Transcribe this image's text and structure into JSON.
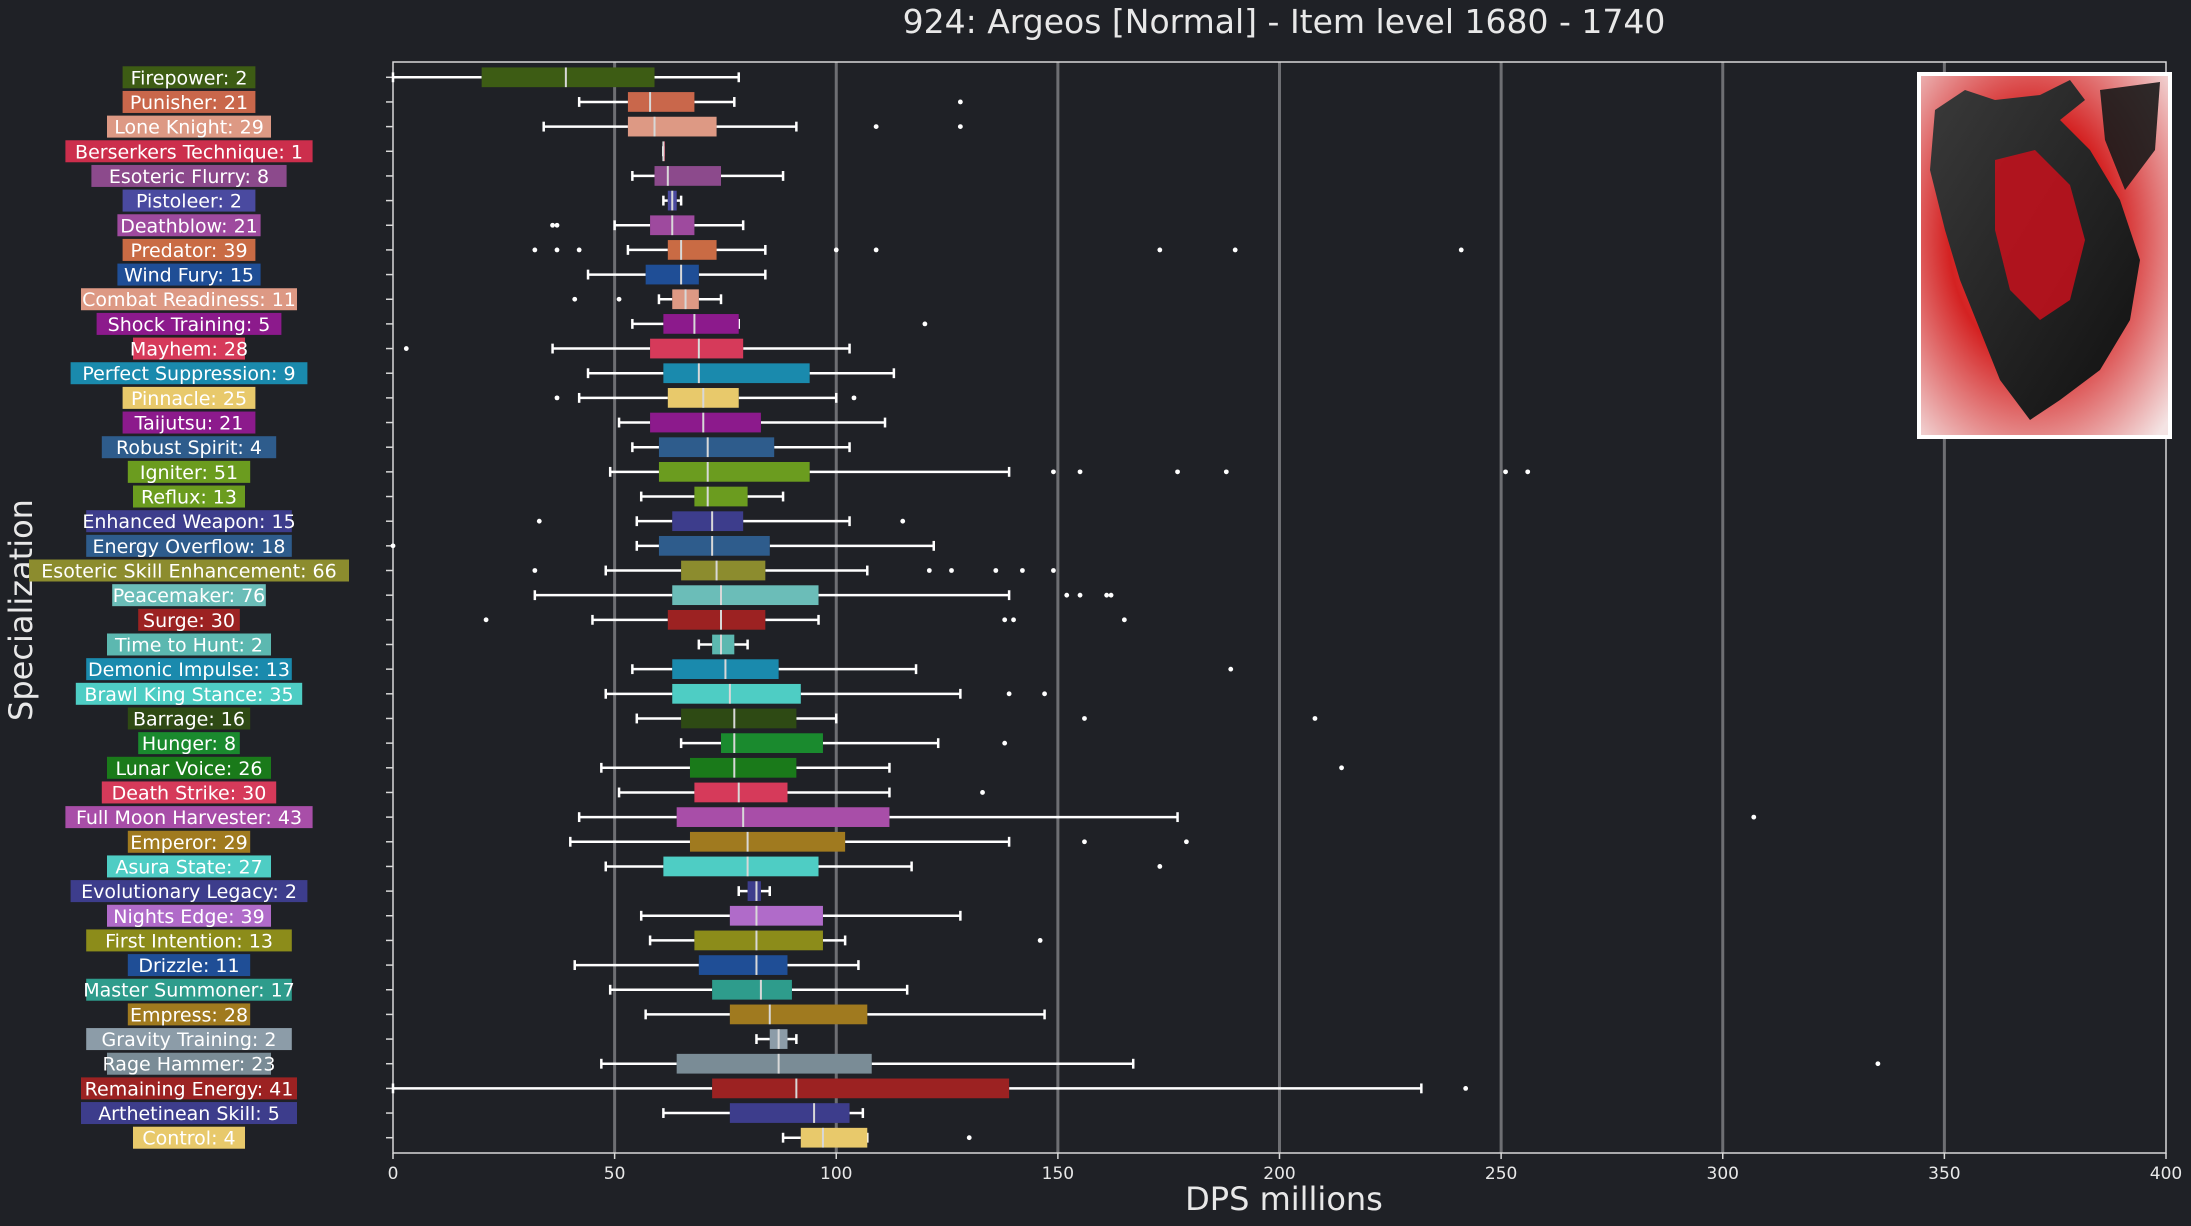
{
  "chart_data": {
    "type": "box",
    "title": "924: Argeos [Normal] - Item level 1680 - 1740",
    "xlabel": "DPS millions",
    "ylabel": "Specialization",
    "xlim": [
      0,
      400
    ],
    "xticks": [
      0,
      50,
      100,
      150,
      200,
      250,
      300,
      350,
      400
    ],
    "grid": "vertical",
    "thumbnail": "argeos-dragon-image",
    "series": [
      {
        "label": "Firepower: 2",
        "color": "#3d5c14",
        "whislo": 0,
        "q1": 20,
        "med": 39,
        "q3": 59,
        "whishi": 78,
        "fliers": []
      },
      {
        "label": "Punisher: 21",
        "color": "#c9674b",
        "whislo": 42,
        "q1": 53,
        "med": 58,
        "q3": 68,
        "whishi": 77,
        "fliers": [
          128
        ]
      },
      {
        "label": "Lone Knight: 29",
        "color": "#dd9984",
        "whislo": 34,
        "q1": 53,
        "med": 59,
        "q3": 73,
        "whishi": 91,
        "fliers": [
          109,
          128
        ]
      },
      {
        "label": "Berserkers Technique: 1",
        "color": "#cc2e4c",
        "whislo": 61,
        "q1": 61,
        "med": 61,
        "q3": 61,
        "whishi": 61,
        "fliers": []
      },
      {
        "label": "Esoteric Flurry: 8",
        "color": "#8c4a8c",
        "whislo": 54,
        "q1": 59,
        "med": 62,
        "q3": 74,
        "whishi": 88,
        "fliers": []
      },
      {
        "label": "Pistoleer: 2",
        "color": "#4a4aa0",
        "whislo": 61,
        "q1": 62,
        "med": 63,
        "q3": 64,
        "whishi": 65,
        "fliers": []
      },
      {
        "label": "Deathblow: 21",
        "color": "#9e4a9e",
        "whislo": 50,
        "q1": 58,
        "med": 63,
        "q3": 68,
        "whishi": 79,
        "fliers": [
          36,
          37
        ]
      },
      {
        "label": "Predator: 39",
        "color": "#c96b44",
        "whislo": 53,
        "q1": 62,
        "med": 65,
        "q3": 73,
        "whishi": 84,
        "fliers": [
          32,
          37,
          42,
          100,
          109,
          173,
          190,
          241
        ]
      },
      {
        "label": "Wind Fury: 15",
        "color": "#1f4e96",
        "whislo": 44,
        "q1": 57,
        "med": 65,
        "q3": 69,
        "whishi": 84,
        "fliers": []
      },
      {
        "label": "Combat Readiness: 11",
        "color": "#dd9984",
        "whislo": 60,
        "q1": 63,
        "med": 66,
        "q3": 69,
        "whishi": 74,
        "fliers": [
          41,
          51
        ]
      },
      {
        "label": "Shock Training: 5",
        "color": "#8c1a8c",
        "whislo": 54,
        "q1": 61,
        "med": 68,
        "q3": 78,
        "whishi": 78,
        "fliers": [
          120
        ]
      },
      {
        "label": "Mayhem: 28",
        "color": "#d63a5a",
        "whislo": 36,
        "q1": 58,
        "med": 69,
        "q3": 79,
        "whishi": 103,
        "fliers": [
          3
        ]
      },
      {
        "label": "Perfect Suppression: 9",
        "color": "#1a8aad",
        "whislo": 44,
        "q1": 61,
        "med": 69,
        "q3": 94,
        "whishi": 113,
        "fliers": []
      },
      {
        "label": "Pinnacle: 25",
        "color": "#e8c96b",
        "whislo": 42,
        "q1": 62,
        "med": 70,
        "q3": 78,
        "whishi": 100,
        "fliers": [
          37,
          104
        ]
      },
      {
        "label": "Taijutsu: 21",
        "color": "#8c1a8c",
        "whislo": 51,
        "q1": 58,
        "med": 70,
        "q3": 83,
        "whishi": 111,
        "fliers": []
      },
      {
        "label": "Robust Spirit: 4",
        "color": "#2e5c8c",
        "whislo": 54,
        "q1": 60,
        "med": 71,
        "q3": 86,
        "whishi": 103,
        "fliers": []
      },
      {
        "label": "Igniter: 51",
        "color": "#6b9c1f",
        "whislo": 49,
        "q1": 60,
        "med": 71,
        "q3": 94,
        "whishi": 139,
        "fliers": [
          149,
          155,
          177,
          188,
          251,
          256
        ]
      },
      {
        "label": "Reflux: 13",
        "color": "#6b9c1f",
        "whislo": 56,
        "q1": 68,
        "med": 71,
        "q3": 80,
        "whishi": 88,
        "fliers": []
      },
      {
        "label": "Enhanced Weapon: 15",
        "color": "#3d3d8c",
        "whislo": 55,
        "q1": 63,
        "med": 72,
        "q3": 79,
        "whishi": 103,
        "fliers": [
          33,
          115
        ]
      },
      {
        "label": "Energy Overflow: 18",
        "color": "#2e5c8c",
        "whislo": 55,
        "q1": 60,
        "med": 72,
        "q3": 85,
        "whishi": 122,
        "fliers": [
          0
        ]
      },
      {
        "label": "Esoteric Skill Enhancement: 66",
        "color": "#8c8c2e",
        "whislo": 48,
        "q1": 65,
        "med": 73,
        "q3": 84,
        "whishi": 107,
        "fliers": [
          32,
          121,
          126,
          136,
          142,
          149
        ]
      },
      {
        "label": "Peacemaker: 76",
        "color": "#6bbdb8",
        "whislo": 32,
        "q1": 63,
        "med": 74,
        "q3": 96,
        "whishi": 139,
        "fliers": [
          152,
          155,
          161,
          162
        ]
      },
      {
        "label": "Surge: 30",
        "color": "#9c2222",
        "whislo": 45,
        "q1": 62,
        "med": 74,
        "q3": 84,
        "whishi": 96,
        "fliers": [
          21,
          138,
          140,
          165
        ]
      },
      {
        "label": "Time to Hunt: 2",
        "color": "#5cb8b0",
        "whislo": 69,
        "q1": 72,
        "med": 74,
        "q3": 77,
        "whishi": 80,
        "fliers": []
      },
      {
        "label": "Demonic Impulse: 13",
        "color": "#1a8aad",
        "whislo": 54,
        "q1": 63,
        "med": 75,
        "q3": 87,
        "whishi": 118,
        "fliers": [
          189
        ]
      },
      {
        "label": "Brawl King Stance: 35",
        "color": "#4ecdc4",
        "whislo": 48,
        "q1": 63,
        "med": 76,
        "q3": 92,
        "whishi": 128,
        "fliers": [
          139,
          147
        ]
      },
      {
        "label": "Barrage: 16",
        "color": "#2e4a14",
        "whislo": 55,
        "q1": 65,
        "med": 77,
        "q3": 91,
        "whishi": 100,
        "fliers": [
          156,
          208
        ]
      },
      {
        "label": "Hunger: 8",
        "color": "#1a8a2e",
        "whislo": 65,
        "q1": 74,
        "med": 77,
        "q3": 97,
        "whishi": 123,
        "fliers": [
          138
        ]
      },
      {
        "label": "Lunar Voice: 26",
        "color": "#1a7a1a",
        "whislo": 47,
        "q1": 67,
        "med": 77,
        "q3": 91,
        "whishi": 112,
        "fliers": [
          214
        ]
      },
      {
        "label": "Death Strike: 30",
        "color": "#d63a5a",
        "whislo": 51,
        "q1": 68,
        "med": 78,
        "q3": 89,
        "whishi": 112,
        "fliers": [
          133
        ]
      },
      {
        "label": "Full Moon Harvester: 43",
        "color": "#a84ea8",
        "whislo": 42,
        "q1": 64,
        "med": 79,
        "q3": 112,
        "whishi": 177,
        "fliers": [
          307
        ]
      },
      {
        "label": "Emperor: 29",
        "color": "#a07a1f",
        "whislo": 40,
        "q1": 67,
        "med": 80,
        "q3": 102,
        "whishi": 139,
        "fliers": [
          156,
          179
        ]
      },
      {
        "label": "Asura State: 27",
        "color": "#4ecdc4",
        "whislo": 48,
        "q1": 61,
        "med": 80,
        "q3": 96,
        "whishi": 117,
        "fliers": [
          173
        ]
      },
      {
        "label": "Evolutionary Legacy: 2",
        "color": "#3d3d8c",
        "whislo": 78,
        "q1": 80,
        "med": 82,
        "q3": 83,
        "whishi": 85,
        "fliers": []
      },
      {
        "label": "Nights Edge: 39",
        "color": "#b06bc9",
        "whislo": 56,
        "q1": 76,
        "med": 82,
        "q3": 97,
        "whishi": 128,
        "fliers": []
      },
      {
        "label": "First Intention: 13",
        "color": "#8c8c1a",
        "whislo": 58,
        "q1": 68,
        "med": 82,
        "q3": 97,
        "whishi": 102,
        "fliers": [
          146
        ]
      },
      {
        "label": "Drizzle: 11",
        "color": "#1f4e96",
        "whislo": 41,
        "q1": 69,
        "med": 82,
        "q3": 89,
        "whishi": 105,
        "fliers": []
      },
      {
        "label": "Master Summoner: 17",
        "color": "#2e9c8c",
        "whislo": 49,
        "q1": 72,
        "med": 83,
        "q3": 90,
        "whishi": 116,
        "fliers": []
      },
      {
        "label": "Empress: 28",
        "color": "#a07a1f",
        "whislo": 57,
        "q1": 76,
        "med": 85,
        "q3": 107,
        "whishi": 147,
        "fliers": []
      },
      {
        "label": "Gravity Training: 2",
        "color": "#8c9ca8",
        "whislo": 82,
        "q1": 85,
        "med": 87,
        "q3": 89,
        "whishi": 91,
        "fliers": []
      },
      {
        "label": "Rage Hammer: 23",
        "color": "#7a8c96",
        "whislo": 47,
        "q1": 64,
        "med": 87,
        "q3": 108,
        "whishi": 167,
        "fliers": [
          335
        ]
      },
      {
        "label": "Remaining Energy: 41",
        "color": "#9c2222",
        "whislo": 0,
        "q1": 72,
        "med": 91,
        "q3": 139,
        "whishi": 232,
        "fliers": [
          242
        ]
      },
      {
        "label": "Arthetinean Skill: 5",
        "color": "#3d3d8c",
        "whislo": 61,
        "q1": 76,
        "med": 95,
        "q3": 103,
        "whishi": 106,
        "fliers": []
      },
      {
        "label": "Control: 4",
        "color": "#e8c96b",
        "whislo": 88,
        "q1": 92,
        "med": 97,
        "q3": 107,
        "whishi": 107,
        "fliers": [
          130
        ]
      }
    ]
  }
}
